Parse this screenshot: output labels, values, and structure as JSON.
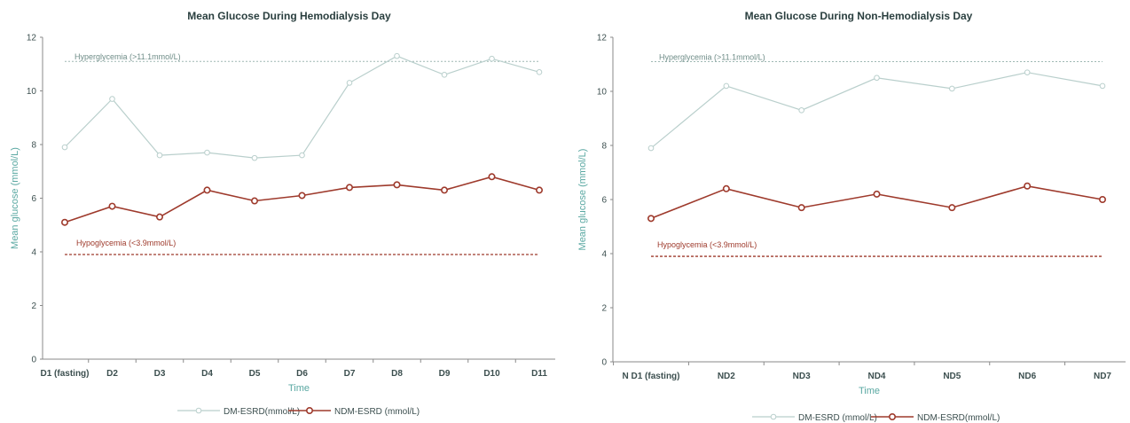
{
  "colors": {
    "dm_series": "#b9cfcc",
    "ndm_series": "#9e3a2c",
    "hyper_line": "#9fb8b4",
    "hypo_line": "#9e3a2c",
    "axis_text": "#3c4f4f",
    "axis_title": "#5aa8a2"
  },
  "chart_data": [
    {
      "type": "line",
      "title": "Mean Glucose During Hemodialysis Day",
      "xlabel": "Time",
      "ylabel": "Mean glucose (mmol/L)",
      "ylim": [
        0,
        12
      ],
      "yticks": [
        0,
        2,
        4,
        6,
        8,
        10,
        12
      ],
      "categories": [
        "D1 (fasting)",
        "D2",
        "D3",
        "D4",
        "D5",
        "D6",
        "D7",
        "D8",
        "D9",
        "D10",
        "D11"
      ],
      "series": [
        {
          "name": "DM-ESRD(mmol/L)",
          "values": [
            7.9,
            9.7,
            7.6,
            7.7,
            7.5,
            7.6,
            10.3,
            11.3,
            10.6,
            11.2,
            10.7
          ]
        },
        {
          "name": "NDM-ESRD (mmol/L)",
          "values": [
            5.1,
            5.7,
            5.3,
            6.3,
            5.9,
            6.1,
            6.4,
            6.5,
            6.3,
            6.8,
            6.3
          ]
        }
      ],
      "reference_lines": [
        {
          "label": "Hyperglycemia (>11.1mmol/L)",
          "value": 11.1
        },
        {
          "label": "Hypoglycemia (<3.9mmol/L)",
          "value": 3.9
        }
      ],
      "legend_position": "bottom",
      "grid": false
    },
    {
      "type": "line",
      "title": "Mean Glucose During Non-Hemodialysis Day",
      "xlabel": "Time",
      "ylabel": "Mean glucose (mmol/L)",
      "ylim": [
        0,
        12
      ],
      "yticks": [
        0,
        2,
        4,
        6,
        8,
        10,
        12
      ],
      "categories": [
        "N D1 (fasting)",
        "ND2",
        "ND3",
        "ND4",
        "ND5",
        "ND6",
        "ND7"
      ],
      "series": [
        {
          "name": "DM-ESRD (mmol/L)",
          "values": [
            7.9,
            10.2,
            9.3,
            10.5,
            10.1,
            10.7,
            10.2
          ]
        },
        {
          "name": "NDM-ESRD(mmol/L)",
          "values": [
            5.3,
            6.4,
            5.7,
            6.2,
            5.7,
            6.5,
            6.0
          ]
        }
      ],
      "reference_lines": [
        {
          "label": "Hyperglycemia (>11.1mmol/L)",
          "value": 11.1
        },
        {
          "label": "Hypoglycemia (<3.9mmol/L)",
          "value": 3.9
        }
      ],
      "legend_position": "bottom",
      "grid": false
    }
  ]
}
